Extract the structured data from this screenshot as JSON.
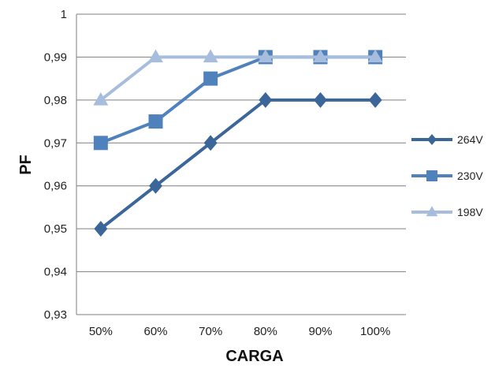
{
  "chart_data": {
    "type": "line",
    "categories": [
      "50%",
      "60%",
      "70%",
      "80%",
      "90%",
      "100%"
    ],
    "xlabel": "CARGA",
    "ylabel": "PF",
    "ylim": [
      0.93,
      1.0
    ],
    "yticks": [
      0.93,
      0.94,
      0.95,
      0.96,
      0.97,
      0.98,
      0.99,
      1.0
    ],
    "ytick_labels": [
      "0,93",
      "0,94",
      "0,95",
      "0,96",
      "0,97",
      "0,98",
      "0,99",
      "1"
    ],
    "grid": true,
    "legend": "right",
    "series": [
      {
        "name": "264V",
        "marker": "diamond",
        "color": "#3B6699",
        "values": [
          0.95,
          0.96,
          0.97,
          0.98,
          0.98,
          0.98
        ]
      },
      {
        "name": "230V",
        "marker": "square",
        "color": "#4F81BD",
        "values": [
          0.97,
          0.975,
          0.985,
          0.99,
          0.99,
          0.99
        ]
      },
      {
        "name": "198V",
        "marker": "triangle",
        "color": "#A7BDDD",
        "values": [
          0.98,
          0.99,
          0.99,
          0.99,
          0.99,
          0.99
        ]
      }
    ]
  }
}
